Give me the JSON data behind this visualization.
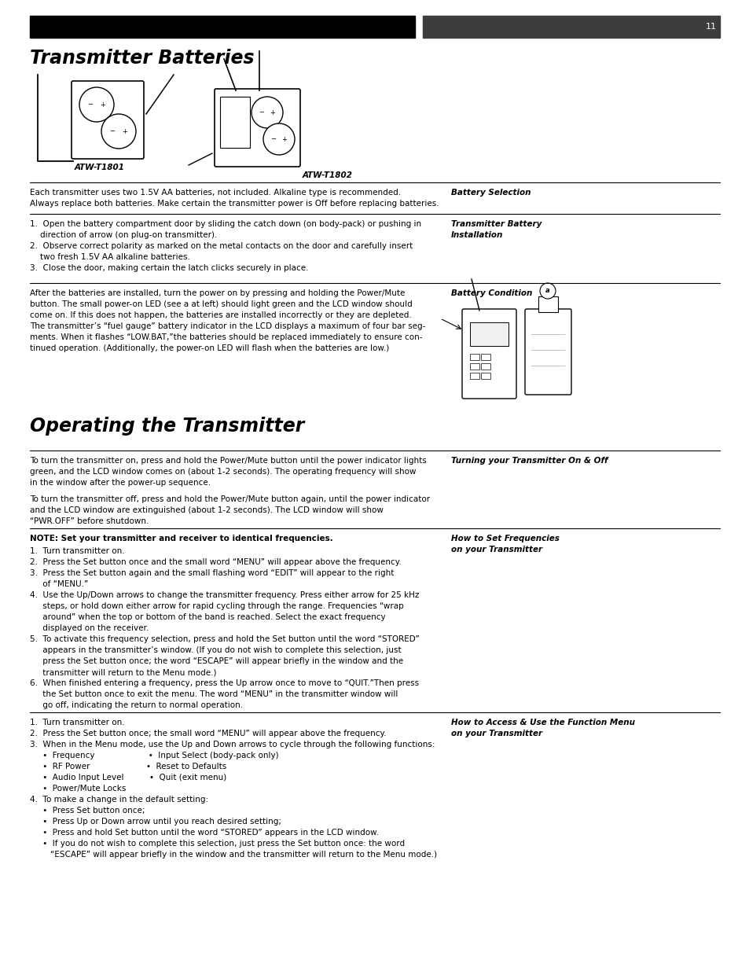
{
  "page_number": "11",
  "header_bar_left_color": "#000000",
  "header_bar_right_color": "#3d3d3d",
  "bg_color": "#ffffff",
  "text_color": "#000000",
  "section1_title": "Transmitter Batteries",
  "section2_title": "Operating the Transmitter",
  "battery_selection_label": "Battery Selection",
  "battery_sel_line1": "Each transmitter uses two 1.5V AA batteries, not included. Alkaline type is recommended.",
  "battery_sel_line2": "Always replace both batteries. Make certain the transmitter power is Off before replacing batteries.",
  "transmitter_battery_installation_label_1": "Transmitter Battery",
  "transmitter_battery_installation_label_2": "Installation",
  "install_line1": "1.  Open the battery compartment door by sliding the catch down (on body-pack) or pushing in",
  "install_line2": "    direction of arrow (on plug-on transmitter).",
  "install_line3": "2.  Observe correct polarity as marked on the metal contacts on the door and carefully insert",
  "install_line4": "    two fresh 1.5V AA alkaline batteries.",
  "install_line5": "3.  Close the door, making certain the latch clicks securely in place.",
  "battery_condition_label": "Battery Condition",
  "bc_line1": "After the batteries are installed, turn the power on by pressing and holding the Power/Mute",
  "bc_line2": "button. The small power-on LED (see a at left) should light green and the LCD window should",
  "bc_line3": "come on. If this does not happen, the batteries are installed incorrectly or they are depleted.",
  "bc_line4": "The transmitter’s “fuel gauge” battery indicator in the LCD displays a maximum of four bar seg-",
  "bc_line5": "ments. When it flashes “LOW.BAT,”the batteries should be replaced immediately to ensure con-",
  "bc_line6": "tinued operation. (Additionally, the power-on LED will flash when the batteries are low.)",
  "turning_on_off_label": "Turning your Transmitter On & Off",
  "turn_line1": "To turn the transmitter on, press and hold the Power/Mute button until the power indicator lights",
  "turn_line2": "green, and the LCD window comes on (about 1-2 seconds). The operating frequency will show",
  "turn_line3": "in the window after the power-up sequence.",
  "turn_line5": "To turn the transmitter off, press and hold the Power/Mute button again, until the power indicator",
  "turn_line6": "and the LCD window are extinguished (about 1-2 seconds). The LCD window will show",
  "turn_line7": "“PWR.OFF” before shutdown.",
  "set_freq_note": "NOTE: Set your transmitter and receiver to identical frequencies.",
  "set_freq_label_1": "How to Set Frequencies",
  "set_freq_label_2": "on your Transmitter",
  "freq_lines": [
    "1.  Turn transmitter on.",
    "2.  Press the Set button once and the small word “MENU” will appear above the frequency.",
    "3.  Press the Set button again and the small flashing word “EDIT” will appear to the right",
    "     of “MENU.”",
    "4.  Use the Up/Down arrows to change the transmitter frequency. Press either arrow for 25 kHz",
    "     steps, or hold down either arrow for rapid cycling through the range. Frequencies “wrap",
    "     around” when the top or bottom of the band is reached. Select the exact frequency",
    "     displayed on the receiver.",
    "5.  To activate this frequency selection, press and hold the Set button until the word “STORED”",
    "     appears in the transmitter’s window. (If you do not wish to complete this selection, just",
    "     press the Set button once; the word “ESCAPE” will appear briefly in the window and the",
    "     transmitter will return to the Menu mode.)",
    "6.  When finished entering a frequency, press the Up arrow once to move to “QUIT.”Then press",
    "     the Set button once to exit the menu. The word “MENU” in the transmitter window will",
    "     go off, indicating the return to normal operation."
  ],
  "function_menu_label_1": "How to Access & Use the Function Menu",
  "function_menu_label_2": "on your Transmitter",
  "func_lines": [
    "1.  Turn transmitter on.",
    "2.  Press the Set button once; the small word “MENU” will appear above the frequency.",
    "3.  When in the Menu mode, use the Up and Down arrows to cycle through the following functions:",
    "     •  Frequency                     •  Input Select (body-pack only)",
    "     •  RF Power                      •  Reset to Defaults",
    "     •  Audio Input Level          •  Quit (exit menu)",
    "     •  Power/Mute Locks",
    "4.  To make a change in the default setting:",
    "     •  Press Set button once;",
    "     •  Press Up or Down arrow until you reach desired setting;",
    "     •  Press and hold Set button until the word “STORED” appears in the LCD window.",
    "     •  If you do not wish to complete this selection, just press the Set button once: the word",
    "        “ESCAPE” will appear briefly in the window and the transmitter will return to the Menu mode.)"
  ],
  "atw1801_label": "ATW-T1801",
  "atw1802_label": "ATW-T1802"
}
